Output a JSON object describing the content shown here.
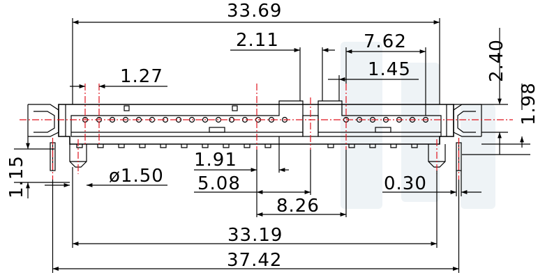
{
  "drawing": {
    "dimensions": [
      {
        "id": "overall-width-top",
        "label": "33.69"
      },
      {
        "id": "gap-2-11",
        "label": "2.11"
      },
      {
        "id": "width-7-62",
        "label": "7.62"
      },
      {
        "id": "height-2-40",
        "label": "2.40"
      },
      {
        "id": "pitch-1-27",
        "label": "1.27"
      },
      {
        "id": "width-1-45",
        "label": "1.45"
      },
      {
        "id": "height-1-98",
        "label": "1.98"
      },
      {
        "id": "height-1-15",
        "label": "1.15"
      },
      {
        "id": "offset-1-91",
        "label": "1.91"
      },
      {
        "id": "peg-dia",
        "label": "ø1.50"
      },
      {
        "id": "offset-5-08",
        "label": "5.08"
      },
      {
        "id": "pin-0-30",
        "label": "0.30"
      },
      {
        "id": "span-8-26",
        "label": "8.26"
      },
      {
        "id": "peg-span-33-19",
        "label": "33.19"
      },
      {
        "id": "overall-width-bottom",
        "label": "37.42"
      }
    ],
    "colors": {
      "outline": "#000000",
      "centerline": "#e0141e",
      "watermark": "#eef3f6"
    }
  }
}
